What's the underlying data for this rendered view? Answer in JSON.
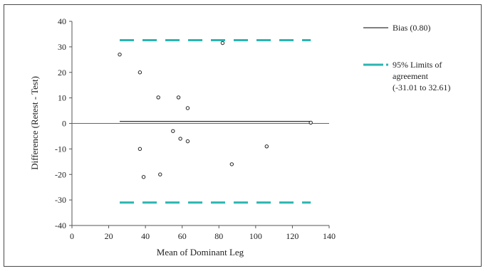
{
  "chart_data": {
    "type": "scatter",
    "title": "",
    "xlabel": "Mean of Dominant Leg",
    "ylabel": "Difference (Retest - Test)",
    "xlim": [
      0,
      140
    ],
    "ylim": [
      -40,
      40
    ],
    "xticks": [
      0,
      20,
      40,
      60,
      80,
      100,
      120,
      140
    ],
    "yticks": [
      -40,
      -30,
      -20,
      -10,
      0,
      10,
      20,
      30,
      40
    ],
    "grid": false,
    "legend_position": "right",
    "points": [
      {
        "x": 26,
        "y": 27
      },
      {
        "x": 37,
        "y": 20
      },
      {
        "x": 47,
        "y": 10.2
      },
      {
        "x": 58,
        "y": 10.2
      },
      {
        "x": 63,
        "y": 6
      },
      {
        "x": 82,
        "y": 31.5
      },
      {
        "x": 55,
        "y": -3
      },
      {
        "x": 59,
        "y": -6
      },
      {
        "x": 63,
        "y": -7
      },
      {
        "x": 37,
        "y": -10
      },
      {
        "x": 106,
        "y": -9
      },
      {
        "x": 39,
        "y": -21
      },
      {
        "x": 48,
        "y": -20
      },
      {
        "x": 87,
        "y": -16
      },
      {
        "x": 130,
        "y": 0.3
      }
    ],
    "reference_lines": [
      {
        "name": "Bias (0.80)",
        "value": 0.8,
        "x_range": [
          26,
          130
        ],
        "style": "solid",
        "color": "#333333"
      },
      {
        "name": "95% Limits of agreement (-31.01 to 32.61)",
        "value": 32.61,
        "x_range": [
          26,
          130
        ],
        "style": "dashed",
        "color": "#2bb5b1"
      },
      {
        "name": "",
        "value": -31.01,
        "x_range": [
          26,
          130
        ],
        "style": "dashed",
        "color": "#2bb5b1"
      }
    ],
    "legend": [
      {
        "label_lines": [
          "Bias (0.80)"
        ],
        "style": "solid",
        "color": "#333333"
      },
      {
        "label_lines": [
          "95% Limits of",
          "agreement",
          "(-31.01 to 32.61)"
        ],
        "style": "dashed",
        "color": "#2bb5b1"
      }
    ]
  }
}
